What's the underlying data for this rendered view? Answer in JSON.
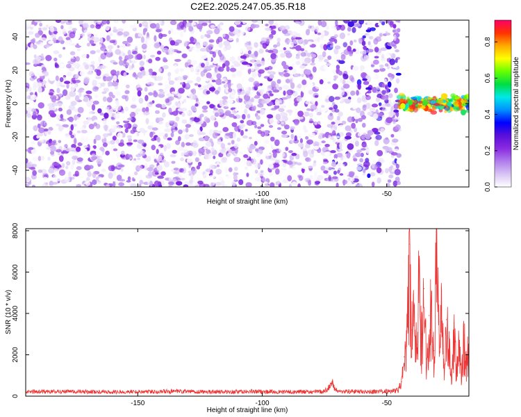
{
  "title": "C2E2.2025.247.05.35.R18",
  "colors": {
    "line": "#ee3333",
    "cmap": [
      "#ffffff",
      "#d8c4f4",
      "#b07cec",
      "#8a2be2",
      "#5a10d8",
      "#0000ff",
      "#0090ff",
      "#00e8e8",
      "#00dd44",
      "#66ff00",
      "#ffff00",
      "#ffaa00",
      "#ff3300",
      "#ff0066"
    ]
  },
  "chart_data": [
    {
      "type": "heatmap",
      "xlabel": "Height of straight line (km)",
      "ylabel": "Frequency (Hz)",
      "xlim": [
        -195,
        -17
      ],
      "ylim": [
        -50,
        50
      ],
      "xticks": [
        -150,
        -100,
        -50
      ],
      "yticks": [
        -40,
        -20,
        0,
        20,
        40
      ],
      "colorbar": {
        "label": "Normalized spectral amplitude",
        "range": [
          0,
          0.92
        ],
        "ticks": [
          0.0,
          0.2,
          0.4,
          0.6,
          0.8
        ]
      },
      "regions": [
        {
          "x": [
            -195,
            -73
          ],
          "description_values": {
            "amplitude_range": [
              0.0,
              0.25
            ],
            "freq_range": [
              -50,
              50
            ]
          }
        },
        {
          "x": [
            -73,
            -45
          ],
          "description_values": {
            "amplitude_range": [
              0.0,
              0.35
            ],
            "freq_range": [
              -50,
              50
            ]
          }
        },
        {
          "x": [
            -45,
            -17
          ],
          "description_values": {
            "amplitude_range": [
              0.3,
              0.9
            ],
            "freq_range": [
              -6,
              6
            ]
          }
        }
      ],
      "grid": false
    },
    {
      "type": "line",
      "xlabel": "Height of straight line (km)",
      "ylabel": "SNR (10 * v/v)",
      "xlim": [
        -195,
        -17
      ],
      "ylim": [
        0,
        8100
      ],
      "xticks": [
        -150,
        -100,
        -50
      ],
      "yticks": [
        0,
        2000,
        4000,
        6000,
        8000
      ],
      "series": [
        {
          "x": [
            -195,
            -180,
            -160,
            -140,
            -120,
            -100,
            -90,
            -80,
            -75,
            -72,
            -70,
            -65,
            -60,
            -55,
            -50,
            -46,
            -44,
            -43,
            -42,
            -41,
            -40,
            -39,
            -38,
            -37,
            -36,
            -35,
            -34,
            -33,
            -32,
            -31,
            -30,
            -29,
            -28,
            -27,
            -26,
            -25,
            -24,
            -23,
            -22,
            -21,
            -20,
            -19,
            -18,
            -17
          ],
          "y": [
            220,
            230,
            210,
            240,
            220,
            230,
            210,
            220,
            230,
            650,
            260,
            240,
            220,
            230,
            250,
            280,
            700,
            1900,
            2600,
            7350,
            3200,
            4500,
            2500,
            6300,
            3000,
            5200,
            1800,
            3900,
            4600,
            2200,
            8050,
            3600,
            5100,
            1500,
            3700,
            2800,
            900,
            3550,
            1400,
            2600,
            1100,
            2950,
            1800,
            2800
          ]
        }
      ],
      "grid": false
    }
  ]
}
